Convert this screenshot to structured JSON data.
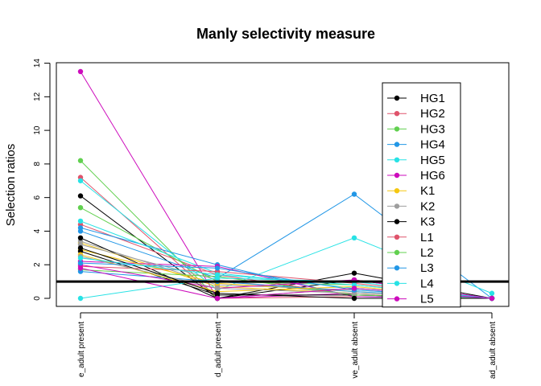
{
  "chart_data": {
    "type": "line",
    "title": "Manly selectivity measure",
    "xlabel": "",
    "ylabel": "Selection ratios",
    "categories": [
      "e_adult present",
      "d_adult present",
      "ve_adult absent",
      "ad_adult absent"
    ],
    "ylim": [
      -0.6,
      14.5
    ],
    "yticks": [
      0,
      2,
      4,
      6,
      8,
      10,
      12,
      14
    ],
    "reference_line": 1,
    "grid": false,
    "legend": {
      "placement": "top-right",
      "entries": [
        {
          "name": "HG1",
          "color": "#000000"
        },
        {
          "name": "HG2",
          "color": "#DF536B"
        },
        {
          "name": "HG3",
          "color": "#61D04F"
        },
        {
          "name": "HG4",
          "color": "#2297E6"
        },
        {
          "name": "HG5",
          "color": "#28E2E5"
        },
        {
          "name": "HG6",
          "color": "#CD0BBC"
        },
        {
          "name": "K1",
          "color": "#F5C710"
        },
        {
          "name": "K2",
          "color": "#9E9E9E"
        },
        {
          "name": "K3",
          "color": "#000000"
        },
        {
          "name": "L1",
          "color": "#DF536B"
        },
        {
          "name": "L2",
          "color": "#61D04F"
        },
        {
          "name": "L3",
          "color": "#2297E6"
        },
        {
          "name": "L4",
          "color": "#28E2E5"
        },
        {
          "name": "L5",
          "color": "#CD0BBC"
        }
      ]
    },
    "series": [
      {
        "color": "#000000",
        "values": [
          6.1,
          0.0,
          1.5,
          0.0
        ]
      },
      {
        "color": "#DF536B",
        "values": [
          7.2,
          0.0,
          0.1,
          0.0
        ]
      },
      {
        "color": "#61D04F",
        "values": [
          8.2,
          0.0,
          0.6,
          0.0
        ]
      },
      {
        "color": "#2297E6",
        "values": [
          4.0,
          1.2,
          6.2,
          0.0
        ]
      },
      {
        "color": "#28E2E5",
        "values": [
          7.0,
          0.5,
          3.6,
          0.3
        ]
      },
      {
        "color": "#CD0BBC",
        "values": [
          13.5,
          0.0,
          0.3,
          0.0
        ]
      },
      {
        "color": "#F5C710",
        "values": [
          3.3,
          0.7,
          0.3,
          0.0
        ]
      },
      {
        "color": "#9E9E9E",
        "values": [
          3.4,
          0.8,
          0.5,
          0.0
        ]
      },
      {
        "color": "#000000",
        "values": [
          3.6,
          0.0,
          1.1,
          0.0
        ]
      },
      {
        "color": "#DF536B",
        "values": [
          4.4,
          1.4,
          0.2,
          0.0
        ]
      },
      {
        "color": "#61D04F",
        "values": [
          5.4,
          1.0,
          0.8,
          0.0
        ]
      },
      {
        "color": "#2297E6",
        "values": [
          4.2,
          2.0,
          0.1,
          0.0
        ]
      },
      {
        "color": "#28E2E5",
        "values": [
          4.6,
          1.5,
          0.6,
          0.0
        ]
      },
      {
        "color": "#CD0BBC",
        "values": [
          2.2,
          1.9,
          0.1,
          0.0
        ]
      },
      {
        "color": "#F5C710",
        "values": [
          2.9,
          0.9,
          0.4,
          0.0
        ]
      },
      {
        "color": "#9E9E9E",
        "values": [
          3.2,
          1.1,
          0.2,
          0.0
        ]
      },
      {
        "color": "#000000",
        "values": [
          2.8,
          0.2,
          0.2,
          0.0
        ]
      },
      {
        "color": "#DF536B",
        "values": [
          1.9,
          1.6,
          0.9,
          0.0
        ]
      },
      {
        "color": "#61D04F",
        "values": [
          1.7,
          1.3,
          0.2,
          0.0
        ]
      },
      {
        "color": "#2297E6",
        "values": [
          1.6,
          1.0,
          0.4,
          0.0
        ]
      },
      {
        "color": "#28E2E5",
        "values": [
          0.0,
          1.2,
          1.0,
          0.0
        ]
      },
      {
        "color": "#CD0BBC",
        "values": [
          2.0,
          0.6,
          1.1,
          0.0
        ]
      },
      {
        "color": "#F5C710",
        "values": [
          2.6,
          0.4,
          0.7,
          0.0
        ]
      },
      {
        "color": "#9E9E9E",
        "values": [
          2.5,
          0.6,
          0.3,
          0.0
        ]
      },
      {
        "color": "#000000",
        "values": [
          3.0,
          0.3,
          0.0,
          0.0
        ]
      },
      {
        "color": "#2297E6",
        "values": [
          2.1,
          1.8,
          0.5,
          0.0
        ]
      },
      {
        "color": "#28E2E5",
        "values": [
          2.4,
          1.4,
          0.8,
          0.0
        ]
      },
      {
        "color": "#CD0BBC",
        "values": [
          1.8,
          0.0,
          0.6,
          0.0
        ]
      }
    ]
  }
}
